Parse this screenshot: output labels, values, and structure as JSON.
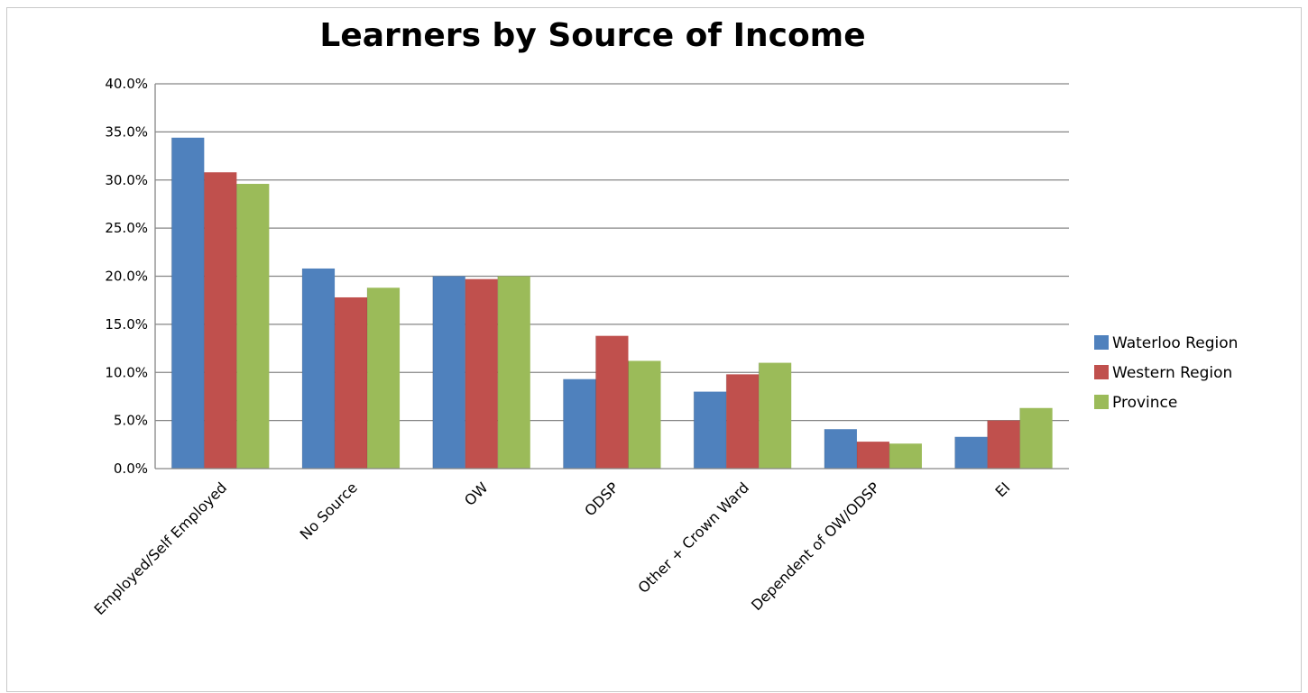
{
  "chart_data": {
    "type": "bar",
    "title": "Learners by Source of Income",
    "xlabel": "",
    "ylabel": "",
    "ylim": [
      0,
      40
    ],
    "yticks": [
      "0.0%",
      "5.0%",
      "10.0%",
      "15.0%",
      "20.0%",
      "25.0%",
      "30.0%",
      "35.0%",
      "40.0%"
    ],
    "categories": [
      "Employed/Self Employed",
      "No Source",
      "OW",
      "ODSP",
      "Other + Crown Ward",
      "Dependent of OW/ODSP",
      "EI"
    ],
    "series": [
      {
        "name": "Waterloo Region",
        "color": "#4F81BD",
        "values": [
          34.4,
          20.8,
          20.0,
          9.3,
          8.0,
          4.1,
          3.3
        ]
      },
      {
        "name": "Western Region",
        "color": "#C0504D",
        "values": [
          30.8,
          17.8,
          19.7,
          13.8,
          9.8,
          2.8,
          5.0
        ]
      },
      {
        "name": "Province",
        "color": "#9BBB59",
        "values": [
          29.6,
          18.8,
          20.0,
          11.2,
          11.0,
          2.6,
          6.3
        ]
      }
    ],
    "grid": true,
    "legend": "right"
  }
}
